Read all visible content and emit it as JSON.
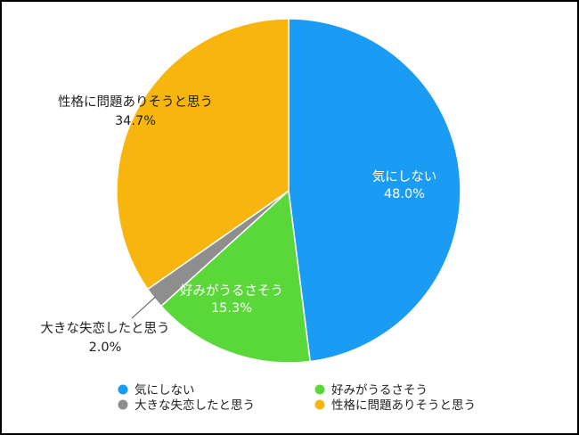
{
  "chart_data": {
    "type": "pie",
    "slices": [
      {
        "label": "気にしない",
        "value": 48.0,
        "display": "48.0%",
        "color": "#1a9cf5"
      },
      {
        "label": "好みがうるさそう",
        "value": 15.3,
        "display": "15.3%",
        "color": "#5ad83a"
      },
      {
        "label": "大きな失恋したと思う",
        "value": 2.0,
        "display": "2.0%",
        "color": "#8e8e8e"
      },
      {
        "label": "性格に問題ありそうと思う",
        "value": 34.7,
        "display": "34.7%",
        "color": "#f7b50e"
      }
    ],
    "start_angle": "12 o'clock",
    "direction": "clockwise",
    "legend": {
      "position": "bottom",
      "items": [
        "気にしない",
        "好みがうるさそう",
        "大きな失恋したと思う",
        "性格に問題ありそうと思う"
      ]
    }
  }
}
